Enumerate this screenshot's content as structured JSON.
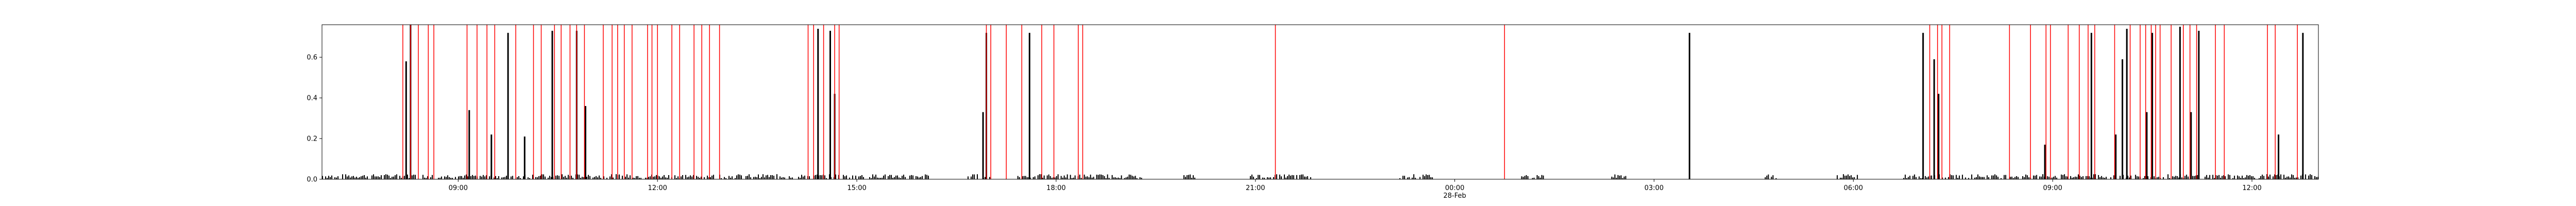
{
  "chart_data": {
    "type": "bar",
    "title": "",
    "xlabel": "",
    "ylabel": "",
    "x_axis": {
      "kind": "time",
      "range": [
        "27-Feb 06:57",
        "28-Feb 13:00"
      ],
      "ticks": [
        {
          "time": "27-Feb 09:00",
          "label": "09:00"
        },
        {
          "time": "27-Feb 12:00",
          "label": "12:00"
        },
        {
          "time": "27-Feb 15:00",
          "label": "15:00"
        },
        {
          "time": "27-Feb 18:00",
          "label": "18:00"
        },
        {
          "time": "27-Feb 21:00",
          "label": "21:00"
        },
        {
          "time": "28-Feb 00:00",
          "label": "00:00"
        },
        {
          "time": "28-Feb 03:00",
          "label": "03:00"
        },
        {
          "time": "28-Feb 06:00",
          "label": "06:00"
        },
        {
          "time": "28-Feb 09:00",
          "label": "09:00"
        },
        {
          "time": "28-Feb 12:00",
          "label": "12:00"
        }
      ],
      "date_label": {
        "time": "28-Feb 00:00",
        "label": "28-Feb"
      }
    },
    "y_axis": {
      "range": [
        0,
        0.76
      ],
      "ticks": [
        {
          "value": 0.0,
          "label": "0.0"
        },
        {
          "value": 0.2,
          "label": "0.2"
        },
        {
          "value": 0.4,
          "label": "0.4"
        },
        {
          "value": 0.6,
          "label": "0.6"
        }
      ]
    },
    "grid": false,
    "legend": "none",
    "colors": {
      "bars": "#000000",
      "events": "#ff0000"
    },
    "baseline_activity": [
      [
        "27-Feb 06:57",
        "27-Feb 16:05"
      ],
      [
        "27-Feb 16:40",
        "27-Feb 17:00"
      ],
      [
        "27-Feb 17:25",
        "27-Feb 19:20"
      ],
      [
        "27-Feb 19:55",
        "27-Feb 20:05"
      ],
      [
        "27-Feb 20:55",
        "27-Feb 21:50"
      ],
      [
        "27-Feb 23:10",
        "27-Feb 23:40"
      ],
      [
        "28-Feb 01:00",
        "28-Feb 01:20"
      ],
      [
        "28-Feb 02:20",
        "28-Feb 02:35"
      ],
      [
        "28-Feb 04:40",
        "28-Feb 04:50"
      ],
      [
        "28-Feb 05:45",
        "28-Feb 06:05"
      ],
      [
        "28-Feb 06:45",
        "28-Feb 13:00"
      ]
    ],
    "spikes": [
      {
        "time": "27-Feb 08:13",
        "value": 0.58
      },
      {
        "time": "27-Feb 08:17",
        "value": 0.76
      },
      {
        "time": "27-Feb 09:10",
        "value": 0.34
      },
      {
        "time": "27-Feb 09:30",
        "value": 0.22
      },
      {
        "time": "27-Feb 09:45",
        "value": 0.72
      },
      {
        "time": "27-Feb 10:00",
        "value": 0.21
      },
      {
        "time": "27-Feb 10:25",
        "value": 0.73
      },
      {
        "time": "27-Feb 10:47",
        "value": 0.73
      },
      {
        "time": "27-Feb 10:55",
        "value": 0.36
      },
      {
        "time": "27-Feb 14:25",
        "value": 0.74
      },
      {
        "time": "27-Feb 14:36",
        "value": 0.73
      },
      {
        "time": "27-Feb 14:40",
        "value": 0.42
      },
      {
        "time": "27-Feb 16:54",
        "value": 0.33
      },
      {
        "time": "27-Feb 16:57",
        "value": 0.72
      },
      {
        "time": "27-Feb 17:36",
        "value": 0.72
      },
      {
        "time": "28-Feb 03:32",
        "value": 0.72
      },
      {
        "time": "28-Feb 07:03",
        "value": 0.72
      },
      {
        "time": "28-Feb 07:13",
        "value": 0.59
      },
      {
        "time": "28-Feb 07:17",
        "value": 0.42
      },
      {
        "time": "28-Feb 08:53",
        "value": 0.17
      },
      {
        "time": "28-Feb 09:35",
        "value": 0.72
      },
      {
        "time": "28-Feb 09:57",
        "value": 0.22
      },
      {
        "time": "28-Feb 10:03",
        "value": 0.59
      },
      {
        "time": "28-Feb 10:07",
        "value": 0.74
      },
      {
        "time": "28-Feb 10:25",
        "value": 0.33
      },
      {
        "time": "28-Feb 10:30",
        "value": 0.72
      },
      {
        "time": "28-Feb 10:55",
        "value": 0.75
      },
      {
        "time": "28-Feb 11:05",
        "value": 0.33
      },
      {
        "time": "28-Feb 11:12",
        "value": 0.73
      },
      {
        "time": "28-Feb 12:24",
        "value": 0.22
      },
      {
        "time": "28-Feb 12:46",
        "value": 0.72
      }
    ],
    "event_lines": [
      "27-Feb 08:10",
      "27-Feb 08:17",
      "27-Feb 08:24",
      "27-Feb 08:33",
      "27-Feb 08:38",
      "27-Feb 09:08",
      "27-Feb 09:17",
      "27-Feb 09:26",
      "27-Feb 09:33",
      "27-Feb 09:52",
      "27-Feb 10:08",
      "27-Feb 10:15",
      "27-Feb 10:27",
      "27-Feb 10:33",
      "27-Feb 10:41",
      "27-Feb 10:47",
      "27-Feb 10:54",
      "27-Feb 11:11",
      "27-Feb 11:19",
      "27-Feb 11:24",
      "27-Feb 11:30",
      "27-Feb 11:37",
      "27-Feb 11:51",
      "27-Feb 11:55",
      "27-Feb 12:00",
      "27-Feb 12:13",
      "27-Feb 12:20",
      "27-Feb 12:33",
      "27-Feb 12:40",
      "27-Feb 12:47",
      "27-Feb 12:56",
      "27-Feb 14:16",
      "27-Feb 14:21",
      "27-Feb 14:30",
      "27-Feb 14:40",
      "27-Feb 14:44",
      "27-Feb 16:57",
      "27-Feb 17:01",
      "27-Feb 17:15",
      "27-Feb 17:29",
      "27-Feb 17:47",
      "27-Feb 17:58",
      "27-Feb 18:20",
      "27-Feb 18:24",
      "27-Feb 21:18",
      "28-Feb 00:45",
      "28-Feb 07:09",
      "28-Feb 07:16",
      "28-Feb 07:20",
      "28-Feb 07:27",
      "28-Feb 08:21",
      "28-Feb 08:40",
      "28-Feb 08:54",
      "28-Feb 08:58",
      "28-Feb 09:14",
      "28-Feb 09:24",
      "28-Feb 09:32",
      "28-Feb 09:38",
      "28-Feb 09:56",
      "28-Feb 10:10",
      "28-Feb 10:19",
      "28-Feb 10:24",
      "28-Feb 10:29",
      "28-Feb 10:33",
      "28-Feb 10:37",
      "28-Feb 10:47",
      "28-Feb 10:58",
      "28-Feb 11:04",
      "28-Feb 11:10",
      "28-Feb 11:27",
      "28-Feb 11:35",
      "28-Feb 12:14",
      "28-Feb 12:21",
      "28-Feb 12:41"
    ]
  }
}
